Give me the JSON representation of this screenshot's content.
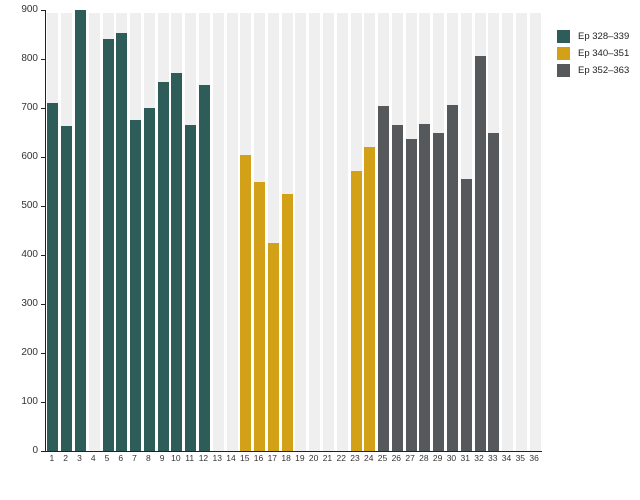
{
  "chart_data": {
    "type": "bar",
    "title": "",
    "xlabel": "",
    "ylabel": "",
    "x": [
      1,
      2,
      3,
      4,
      5,
      6,
      7,
      8,
      9,
      10,
      11,
      12,
      13,
      14,
      15,
      16,
      17,
      18,
      19,
      20,
      21,
      22,
      23,
      24,
      25,
      26,
      27,
      28,
      29,
      30,
      31,
      32,
      33,
      34,
      35,
      36
    ],
    "ylim": [
      0,
      900
    ],
    "yticks": [
      0,
      100,
      200,
      300,
      400,
      500,
      600,
      700,
      800,
      900
    ],
    "grid": false,
    "background_stripe_color": "#efefef",
    "legend_position": "top-right",
    "series": [
      {
        "name": "Ep 328–339",
        "color": "#2d5c59",
        "values": [
          710,
          663,
          900,
          null,
          840,
          854,
          676,
          700,
          753,
          771,
          665,
          747,
          null,
          null,
          null,
          null,
          null,
          null,
          null,
          null,
          null,
          null,
          null,
          null,
          null,
          null,
          null,
          null,
          null,
          null,
          null,
          null,
          null,
          null,
          null,
          null
        ]
      },
      {
        "name": "Ep 340–351",
        "color": "#d3a118",
        "values": [
          null,
          null,
          null,
          null,
          null,
          null,
          null,
          null,
          null,
          null,
          null,
          null,
          null,
          null,
          605,
          549,
          424,
          525,
          null,
          null,
          null,
          null,
          571,
          621,
          null,
          null,
          null,
          null,
          null,
          null,
          null,
          null,
          null,
          null,
          null,
          null
        ]
      },
      {
        "name": "Ep 352–363",
        "color": "#56595c",
        "values": [
          null,
          null,
          null,
          null,
          null,
          null,
          null,
          null,
          null,
          null,
          null,
          null,
          null,
          null,
          null,
          null,
          null,
          null,
          null,
          null,
          null,
          null,
          null,
          null,
          704,
          665,
          637,
          668,
          649,
          706,
          556,
          806,
          650,
          null,
          null,
          null
        ]
      }
    ]
  }
}
